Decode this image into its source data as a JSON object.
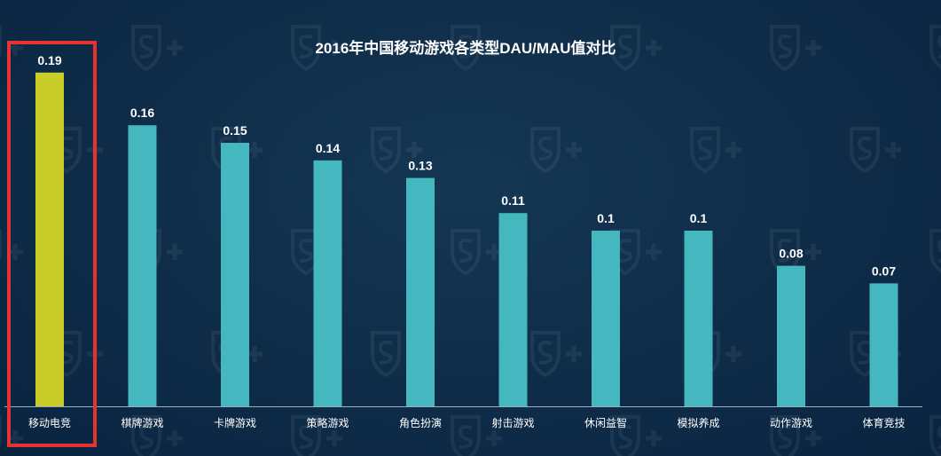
{
  "chart_data": {
    "type": "bar",
    "title": "2016年中国移动游戏各类型DAU/MAU值对比",
    "categories": [
      "移动电竞",
      "棋牌游戏",
      "卡牌游戏",
      "策略游戏",
      "角色扮演",
      "射击游戏",
      "休闲益智",
      "模拟养成",
      "动作游戏",
      "体育竞技"
    ],
    "values": [
      0.19,
      0.16,
      0.15,
      0.14,
      0.13,
      0.11,
      0.1,
      0.1,
      0.08,
      0.07
    ],
    "value_labels": [
      "0.19",
      "0.16",
      "0.15",
      "0.14",
      "0.13",
      "0.11",
      "0.1",
      "0.1",
      "0.08",
      "0.07"
    ],
    "ylim": [
      0,
      0.2
    ],
    "xlabel": "",
    "ylabel": "",
    "grid": false,
    "legend": "none",
    "highlighted_category": "移动电竞"
  },
  "colors": {
    "background": "#0e2c48",
    "bar": "#45b7be",
    "bar_highlight": "#c8cd2a",
    "highlight_box": "#e8322f",
    "axis": "#9ab0c2",
    "text": "#ffffff",
    "watermark": "#ffffff"
  },
  "watermark": {
    "icon": "shield-s-plus-icon"
  }
}
